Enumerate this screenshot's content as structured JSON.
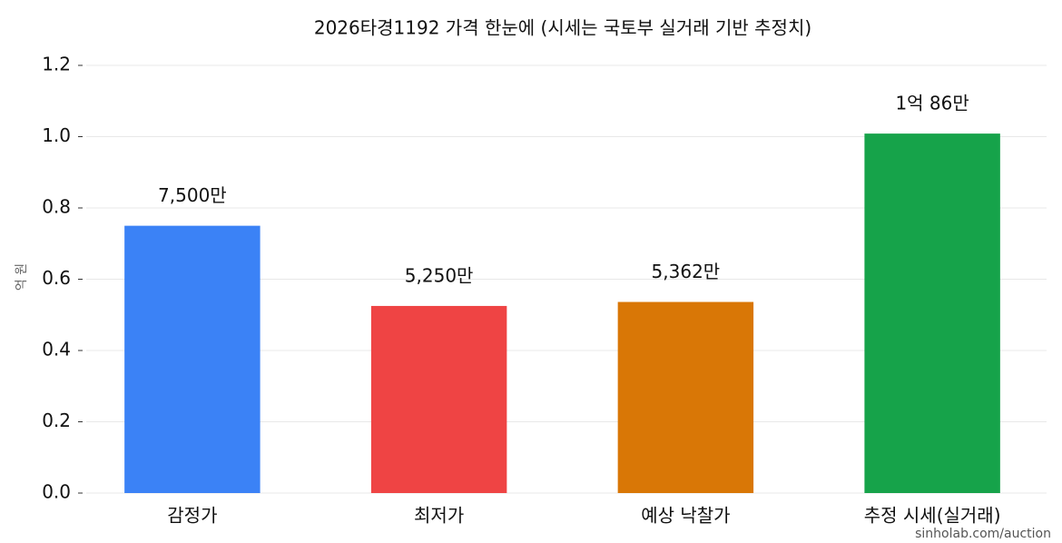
{
  "chart_data": {
    "type": "bar",
    "title": "2026타경1192 가격 한눈에 (시세는 국토부 실거래 기반 추정치)",
    "y_label": "억 원",
    "categories": [
      "감정가",
      "최저가",
      "예상 낙찰가",
      "추정 시세(실거래)"
    ],
    "values": [
      0.75,
      0.525,
      0.5362,
      1.0086
    ],
    "value_labels": [
      "7,500만",
      "5,250만",
      "5,362만",
      "1억 86만"
    ],
    "colors": [
      "#3b82f6",
      "#ef4444",
      "#d97706",
      "#16a34a"
    ],
    "ylim": [
      0,
      1.2
    ],
    "yticks": [
      {
        "value": 0,
        "label": "0.0"
      },
      0.2,
      0.4,
      0.6,
      0.8,
      {
        "value": 1,
        "label": "1.0"
      },
      1.2
    ],
    "grid": true,
    "watermark": "sinholab.com/auction"
  }
}
